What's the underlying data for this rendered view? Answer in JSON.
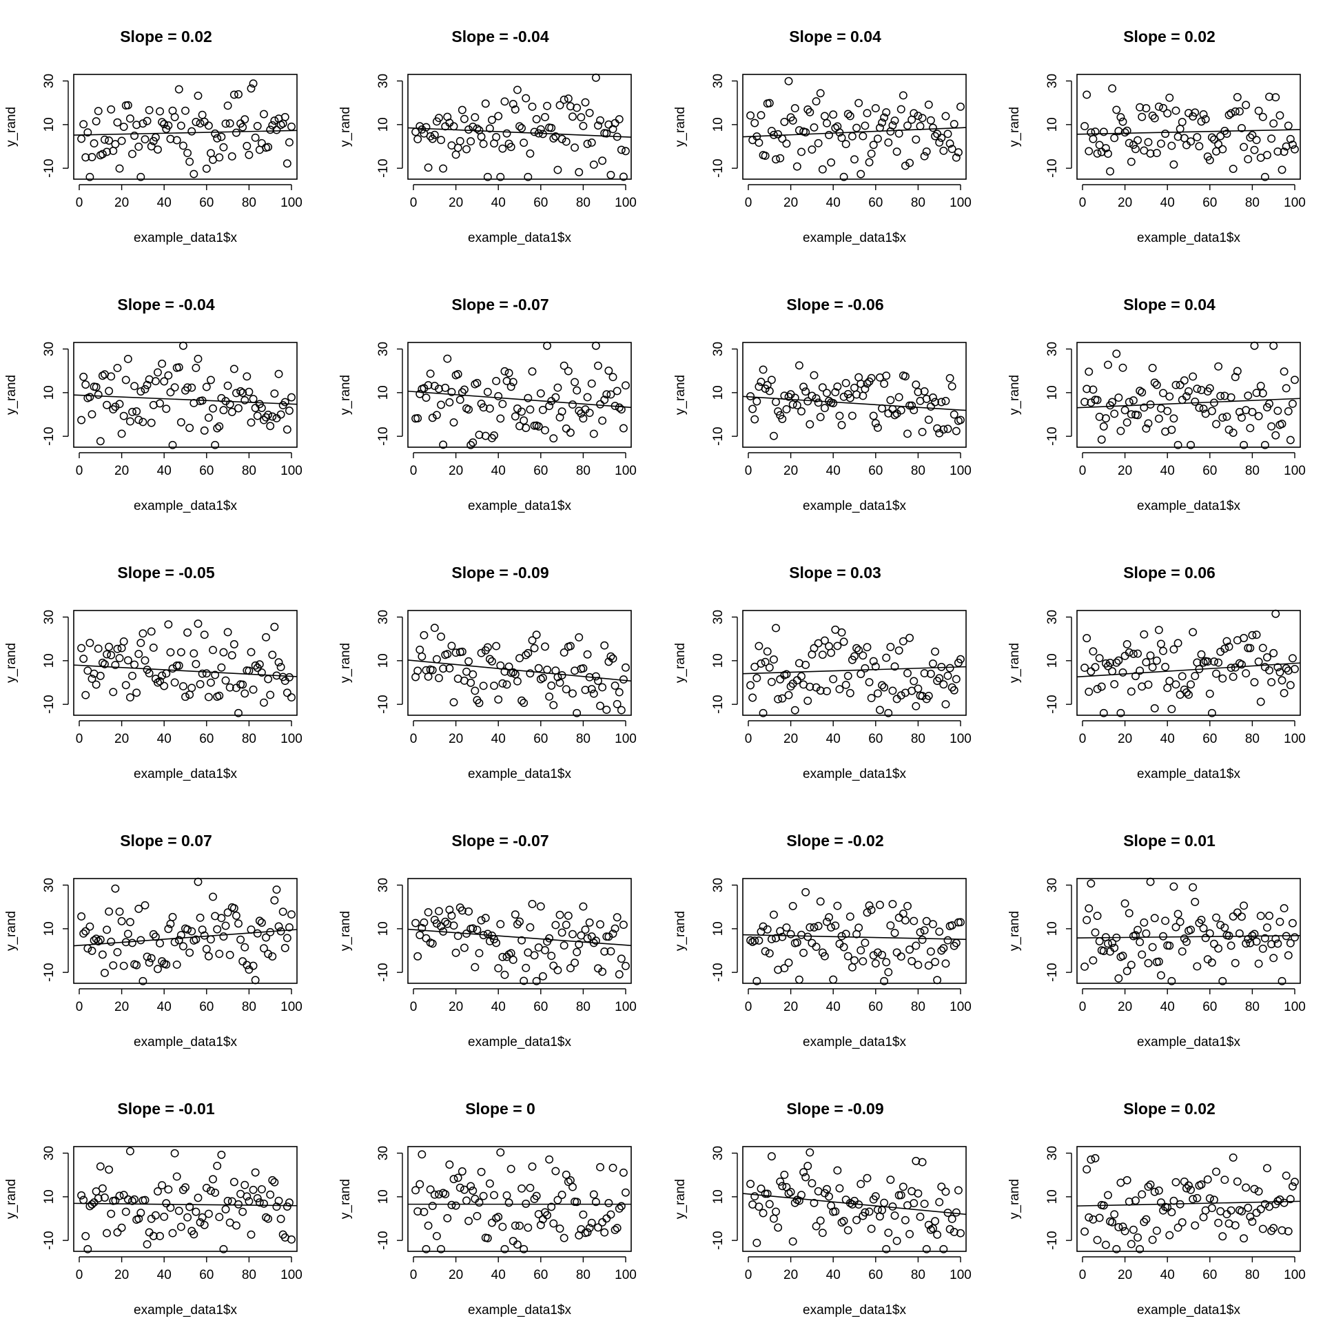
{
  "chart_data": [
    {
      "type": "scatter",
      "title": "Slope =  0.02",
      "slope": 0.02,
      "xlabel": "example_data1$x",
      "ylabel": "y_rand",
      "xlim": [
        0,
        100
      ],
      "ylim": [
        -15,
        33
      ],
      "xticks": [
        "0",
        "20",
        "40",
        "60",
        "80",
        "100"
      ],
      "yticks": [
        "-10",
        "10",
        "30"
      ]
    },
    {
      "type": "scatter",
      "title": "Slope =  -0.04",
      "slope": -0.04,
      "xlabel": "example_data1$x",
      "ylabel": "y_rand",
      "xlim": [
        0,
        100
      ],
      "ylim": [
        -15,
        33
      ],
      "xticks": [
        "0",
        "20",
        "40",
        "60",
        "80",
        "100"
      ],
      "yticks": [
        "-10",
        "10",
        "30"
      ]
    },
    {
      "type": "scatter",
      "title": "Slope =  0.04",
      "slope": 0.04,
      "xlabel": "example_data1$x",
      "ylabel": "y_rand",
      "xlim": [
        0,
        100
      ],
      "ylim": [
        -15,
        33
      ],
      "xticks": [
        "0",
        "20",
        "40",
        "60",
        "80",
        "100"
      ],
      "yticks": [
        "-10",
        "10",
        "30"
      ]
    },
    {
      "type": "scatter",
      "title": "Slope =  0.02",
      "slope": 0.02,
      "xlabel": "example_data1$x",
      "ylabel": "y_rand",
      "xlim": [
        0,
        100
      ],
      "ylim": [
        -15,
        33
      ],
      "xticks": [
        "0",
        "20",
        "40",
        "60",
        "80",
        "100"
      ],
      "yticks": [
        "-10",
        "10",
        "30"
      ]
    },
    {
      "type": "scatter",
      "title": "Slope =  -0.04",
      "slope": -0.04,
      "xlabel": "example_data1$x",
      "ylabel": "y_rand",
      "xlim": [
        0,
        100
      ],
      "ylim": [
        -15,
        33
      ],
      "xticks": [
        "0",
        "20",
        "40",
        "60",
        "80",
        "100"
      ],
      "yticks": [
        "-10",
        "10",
        "30"
      ]
    },
    {
      "type": "scatter",
      "title": "Slope =  -0.07",
      "slope": -0.07,
      "xlabel": "example_data1$x",
      "ylabel": "y_rand",
      "xlim": [
        0,
        100
      ],
      "ylim": [
        -15,
        33
      ],
      "xticks": [
        "0",
        "20",
        "40",
        "60",
        "80",
        "100"
      ],
      "yticks": [
        "-10",
        "10",
        "30"
      ]
    },
    {
      "type": "scatter",
      "title": "Slope =  -0.06",
      "slope": -0.06,
      "xlabel": "example_data1$x",
      "ylabel": "y_rand",
      "xlim": [
        0,
        100
      ],
      "ylim": [
        -15,
        33
      ],
      "xticks": [
        "0",
        "20",
        "40",
        "60",
        "80",
        "100"
      ],
      "yticks": [
        "-10",
        "10",
        "30"
      ]
    },
    {
      "type": "scatter",
      "title": "Slope =  0.04",
      "slope": 0.04,
      "xlabel": "example_data1$x",
      "ylabel": "y_rand",
      "xlim": [
        0,
        100
      ],
      "ylim": [
        -15,
        33
      ],
      "xticks": [
        "0",
        "20",
        "40",
        "60",
        "80",
        "100"
      ],
      "yticks": [
        "-10",
        "10",
        "30"
      ]
    },
    {
      "type": "scatter",
      "title": "Slope =  -0.05",
      "slope": -0.05,
      "xlabel": "example_data1$x",
      "ylabel": "y_rand",
      "xlim": [
        0,
        100
      ],
      "ylim": [
        -15,
        33
      ],
      "xticks": [
        "0",
        "20",
        "40",
        "60",
        "80",
        "100"
      ],
      "yticks": [
        "-10",
        "10",
        "30"
      ]
    },
    {
      "type": "scatter",
      "title": "Slope =  -0.09",
      "slope": -0.09,
      "xlabel": "example_data1$x",
      "ylabel": "y_rand",
      "xlim": [
        0,
        100
      ],
      "ylim": [
        -15,
        33
      ],
      "xticks": [
        "0",
        "20",
        "40",
        "60",
        "80",
        "100"
      ],
      "yticks": [
        "-10",
        "10",
        "30"
      ]
    },
    {
      "type": "scatter",
      "title": "Slope =  0.03",
      "slope": 0.03,
      "xlabel": "example_data1$x",
      "ylabel": "y_rand",
      "xlim": [
        0,
        100
      ],
      "ylim": [
        -15,
        33
      ],
      "xticks": [
        "0",
        "20",
        "40",
        "60",
        "80",
        "100"
      ],
      "yticks": [
        "-10",
        "10",
        "30"
      ]
    },
    {
      "type": "scatter",
      "title": "Slope =  0.06",
      "slope": 0.06,
      "xlabel": "example_data1$x",
      "ylabel": "y_rand",
      "xlim": [
        0,
        100
      ],
      "ylim": [
        -15,
        33
      ],
      "xticks": [
        "0",
        "20",
        "40",
        "60",
        "80",
        "100"
      ],
      "yticks": [
        "-10",
        "10",
        "30"
      ]
    },
    {
      "type": "scatter",
      "title": "Slope =  0.07",
      "slope": 0.07,
      "xlabel": "example_data1$x",
      "ylabel": "y_rand",
      "xlim": [
        0,
        100
      ],
      "ylim": [
        -15,
        33
      ],
      "xticks": [
        "0",
        "20",
        "40",
        "60",
        "80",
        "100"
      ],
      "yticks": [
        "-10",
        "10",
        "30"
      ]
    },
    {
      "type": "scatter",
      "title": "Slope =  -0.07",
      "slope": -0.07,
      "xlabel": "example_data1$x",
      "ylabel": "y_rand",
      "xlim": [
        0,
        100
      ],
      "ylim": [
        -15,
        33
      ],
      "xticks": [
        "0",
        "20",
        "40",
        "60",
        "80",
        "100"
      ],
      "yticks": [
        "-10",
        "10",
        "30"
      ]
    },
    {
      "type": "scatter",
      "title": "Slope =  -0.02",
      "slope": -0.02,
      "xlabel": "example_data1$x",
      "ylabel": "y_rand",
      "xlim": [
        0,
        100
      ],
      "ylim": [
        -15,
        33
      ],
      "xticks": [
        "0",
        "20",
        "40",
        "60",
        "80",
        "100"
      ],
      "yticks": [
        "-10",
        "10",
        "30"
      ]
    },
    {
      "type": "scatter",
      "title": "Slope =  0.01",
      "slope": 0.01,
      "xlabel": "example_data1$x",
      "ylabel": "y_rand",
      "xlim": [
        0,
        100
      ],
      "ylim": [
        -15,
        33
      ],
      "xticks": [
        "0",
        "20",
        "40",
        "60",
        "80",
        "100"
      ],
      "yticks": [
        "-10",
        "10",
        "30"
      ]
    },
    {
      "type": "scatter",
      "title": "Slope =  -0.01",
      "slope": -0.01,
      "xlabel": "example_data1$x",
      "ylabel": "y_rand",
      "xlim": [
        0,
        100
      ],
      "ylim": [
        -15,
        33
      ],
      "xticks": [
        "0",
        "20",
        "40",
        "60",
        "80",
        "100"
      ],
      "yticks": [
        "-10",
        "10",
        "30"
      ]
    },
    {
      "type": "scatter",
      "title": "Slope =  0",
      "slope": 0,
      "xlabel": "example_data1$x",
      "ylabel": "y_rand",
      "xlim": [
        0,
        100
      ],
      "ylim": [
        -15,
        33
      ],
      "xticks": [
        "0",
        "20",
        "40",
        "60",
        "80",
        "100"
      ],
      "yticks": [
        "-10",
        "10",
        "30"
      ]
    },
    {
      "type": "scatter",
      "title": "Slope =  -0.09",
      "slope": -0.09,
      "xlabel": "example_data1$x",
      "ylabel": "y_rand",
      "xlim": [
        0,
        100
      ],
      "ylim": [
        -15,
        33
      ],
      "xticks": [
        "0",
        "20",
        "40",
        "60",
        "80",
        "100"
      ],
      "yticks": [
        "-10",
        "10",
        "30"
      ]
    },
    {
      "type": "scatter",
      "title": "Slope =  0.02",
      "slope": 0.02,
      "xlabel": "example_data1$x",
      "ylabel": "y_rand",
      "xlim": [
        0,
        100
      ],
      "ylim": [
        -15,
        33
      ],
      "xticks": [
        "0",
        "20",
        "40",
        "60",
        "80",
        "100"
      ],
      "yticks": [
        "-10",
        "10",
        "30"
      ]
    }
  ]
}
